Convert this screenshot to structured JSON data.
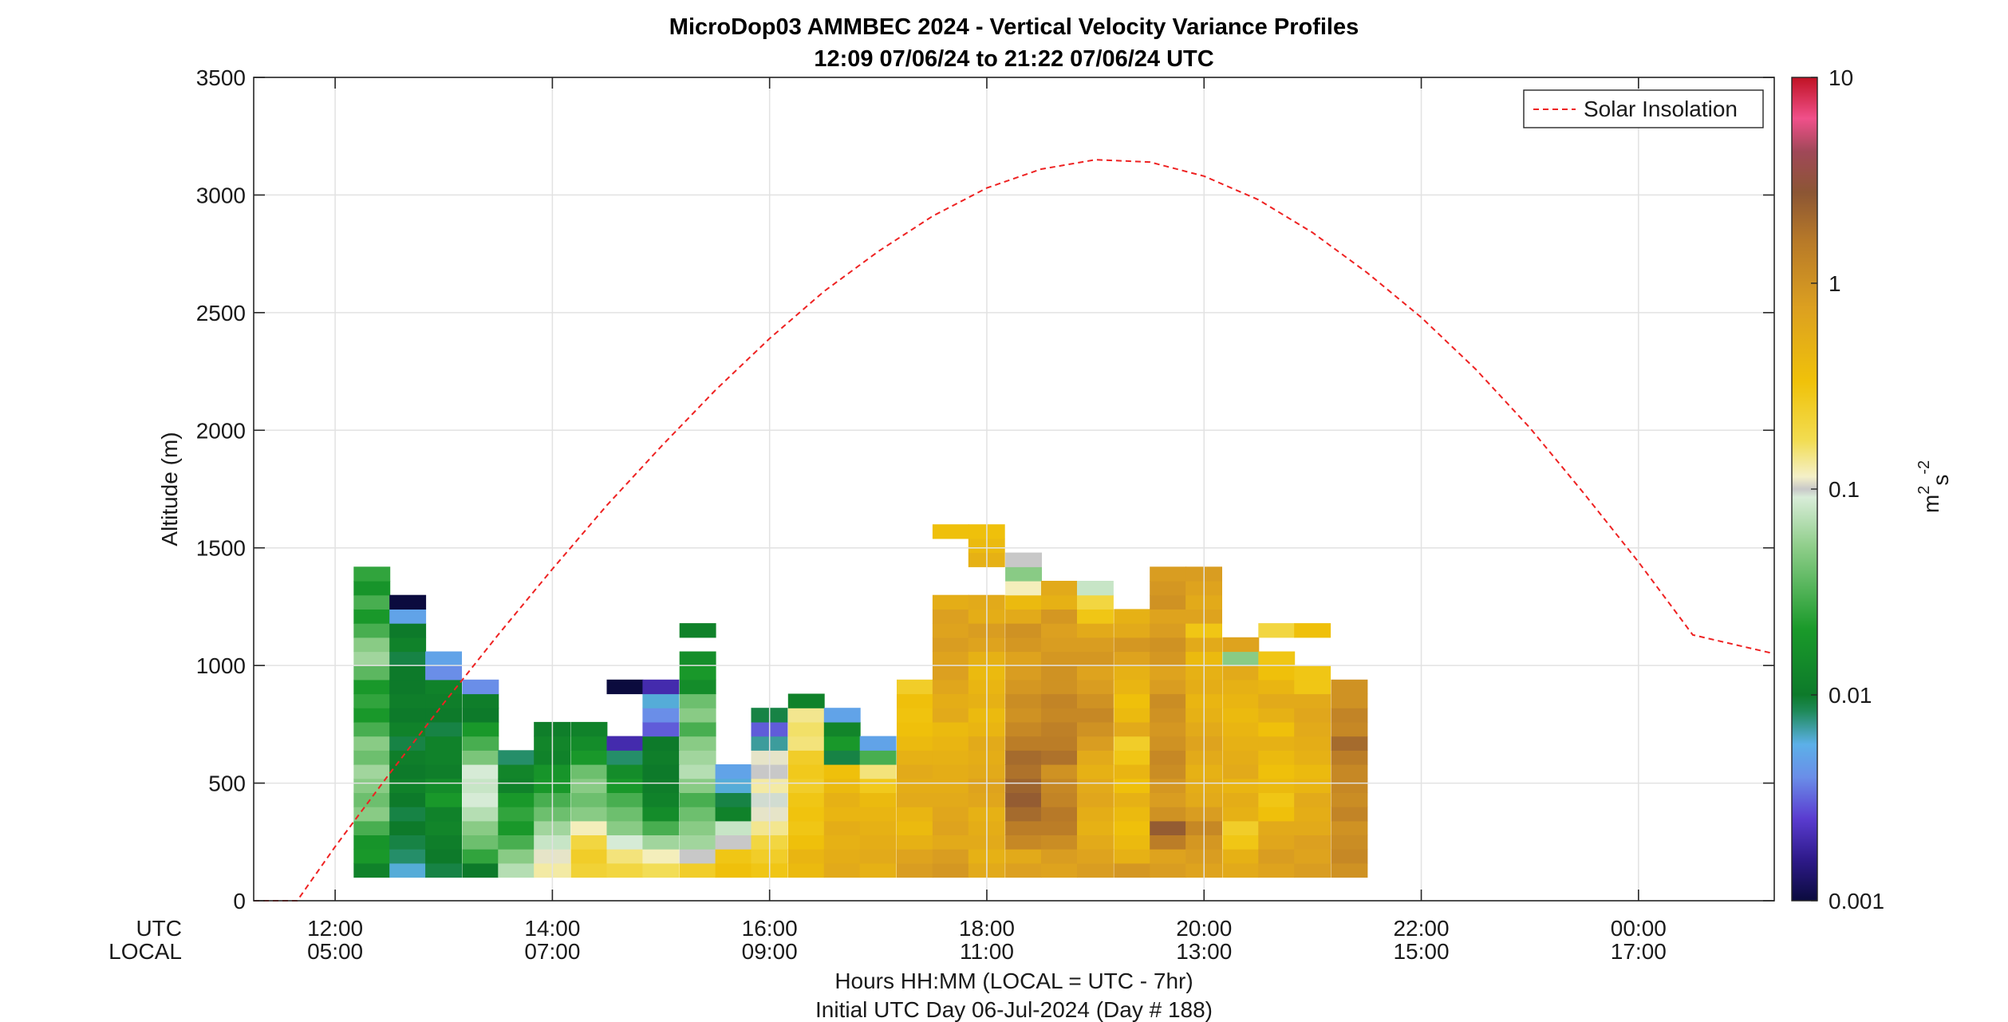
{
  "chart_data": {
    "type": "heatmap",
    "title": "MicroDop03 AMMBEC 2024 - Vertical Velocity Variance Profiles",
    "subtitle": "12:09 07/06/24 to 21:22 07/06/24  UTC",
    "ylabel": "Altitude (m)",
    "xlabel": "Hours HH:MM  (LOCAL = UTC - 7hr)",
    "xlabel2": "Initial UTC Day 06-Jul-2024 (Day # 188)",
    "ylim": [
      0,
      3500
    ],
    "xlim_hours_utc": [
      11.25,
      25.25
    ],
    "y_ticks": [
      "0",
      "500",
      "1000",
      "1500",
      "2000",
      "2500",
      "3000",
      "3500"
    ],
    "x_row_labels": [
      "UTC",
      "LOCAL"
    ],
    "x_ticks_utc": [
      "12:00",
      "14:00",
      "16:00",
      "18:00",
      "20:00",
      "22:00",
      "00:00"
    ],
    "x_ticks_local": [
      "05:00",
      "07:00",
      "09:00",
      "11:00",
      "13:00",
      "15:00",
      "17:00"
    ],
    "grid": true,
    "legend": {
      "placement": "top-right",
      "entries": [
        "Solar Insolation"
      ],
      "colors": [
        "#ee2222"
      ]
    },
    "colorbar": {
      "label_base": "m",
      "label_sup1": "2",
      "label_mid": "s",
      "label_sup2": "-2",
      "scale": "log",
      "range": [
        0.001,
        10
      ],
      "tick_labels": [
        "10",
        "1",
        "0.1",
        "0.01",
        "0.001"
      ],
      "stops": [
        [
          0.0,
          "#0b0b3e"
        ],
        [
          0.05,
          "#2e1a8a"
        ],
        [
          0.1,
          "#5a3cd0"
        ],
        [
          0.15,
          "#6a8ee8"
        ],
        [
          0.19,
          "#5cb0e8"
        ],
        [
          0.23,
          "#1f8a5a"
        ],
        [
          0.25,
          "#0d7a2a"
        ],
        [
          0.33,
          "#1a9a2a"
        ],
        [
          0.43,
          "#8fce8a"
        ],
        [
          0.49,
          "#d8ecd8"
        ],
        [
          0.5,
          "#c8c8c8"
        ],
        [
          0.515,
          "#f4f0c8"
        ],
        [
          0.56,
          "#f2dc50"
        ],
        [
          0.63,
          "#f0c20a"
        ],
        [
          0.72,
          "#dca020"
        ],
        [
          0.8,
          "#b87a28"
        ],
        [
          0.86,
          "#8c5634"
        ],
        [
          0.91,
          "#a04858"
        ],
        [
          0.95,
          "#f0508a"
        ],
        [
          1.0,
          "#c01224"
        ]
      ]
    },
    "solar_insolation": {
      "note": "altitude-scaled insolation curve",
      "peak_hour_utc": 19.1,
      "peak_value": 3150,
      "zero_until_hour": 11.65,
      "points": [
        [
          11.25,
          0
        ],
        [
          11.65,
          0
        ],
        [
          12,
          230
        ],
        [
          12.5,
          540
        ],
        [
          13,
          840
        ],
        [
          13.5,
          1130
        ],
        [
          14,
          1410
        ],
        [
          14.5,
          1680
        ],
        [
          15,
          1930
        ],
        [
          15.5,
          2170
        ],
        [
          16,
          2390
        ],
        [
          16.5,
          2590
        ],
        [
          17,
          2760
        ],
        [
          17.5,
          2910
        ],
        [
          18,
          3030
        ],
        [
          18.5,
          3110
        ],
        [
          19,
          3150
        ],
        [
          19.5,
          3140
        ],
        [
          20,
          3080
        ],
        [
          20.5,
          2980
        ],
        [
          21,
          2840
        ],
        [
          21.5,
          2670
        ],
        [
          22,
          2480
        ],
        [
          22.5,
          2260
        ],
        [
          23,
          2010
        ],
        [
          23.5,
          1730
        ],
        [
          24,
          1440
        ],
        [
          24.5,
          1130
        ],
        [
          25.25,
          1050
        ]
      ]
    },
    "heatmap": {
      "x_units": "hours UTC (column start)",
      "column_width_hours": 0.333,
      "bin_height_m": 60,
      "columns": [
        {
          "x": 12.17,
          "y0": 100,
          "v": [
            0.012,
            0.02,
            0.018,
            0.03,
            0.05,
            0.04,
            0.05,
            0.06,
            0.04,
            0.05,
            0.03,
            0.02,
            0.025,
            0.02,
            0.035,
            0.06,
            0.05,
            0.03,
            0.02,
            0.03,
            0.018,
            0.025
          ]
        },
        {
          "x": 12.5,
          "y0": 100,
          "v": [
            0.006,
            0.008,
            0.009,
            0.01,
            0.009,
            0.01,
            0.012,
            0.01,
            0.011,
            0.009,
            0.012,
            0.01,
            0.011,
            0.01,
            0.01,
            0.009,
            0.012,
            0.01,
            0.005,
            0.001
          ]
        },
        {
          "x": 12.83,
          "y0": 100,
          "v": [
            0.009,
            0.01,
            0.011,
            0.013,
            0.012,
            0.02,
            0.015,
            0.011,
            0.012,
            0.012,
            0.009,
            0.01,
            0.011,
            0.012,
            0.004,
            0.005
          ]
        },
        {
          "x": 13.17,
          "y0": 100,
          "v": [
            0.01,
            0.025,
            0.04,
            0.05,
            0.07,
            0.09,
            0.08,
            0.09,
            0.045,
            0.03,
            0.02,
            0.01,
            0.011,
            0.004
          ]
        },
        {
          "x": 13.5,
          "y0": 100,
          "v": [
            0.07,
            0.05,
            0.03,
            0.02,
            0.025,
            0.02,
            0.012,
            0.013,
            0.008
          ]
        },
        {
          "x": 13.83,
          "y0": 100,
          "v": [
            0.13,
            0.11,
            0.08,
            0.06,
            0.04,
            0.03,
            0.02,
            0.018,
            0.012,
            0.013,
            0.011
          ]
        },
        {
          "x": 14.17,
          "y0": 100,
          "v": [
            0.22,
            0.25,
            0.2,
            0.12,
            0.05,
            0.04,
            0.05,
            0.04,
            0.02,
            0.015,
            0.012
          ]
        },
        {
          "x": 14.5,
          "y0": 100,
          "v": [
            0.2,
            0.15,
            0.09,
            0.05,
            0.04,
            0.03,
            0.02,
            0.015,
            0.008,
            0.002,
            0,
            0,
            0,
            0.001
          ]
        },
        {
          "x": 14.83,
          "y0": 100,
          "v": [
            0.17,
            0.12,
            0.06,
            0.03,
            0.015,
            0.012,
            0.011,
            0.01,
            0.011,
            0.01,
            0.003,
            0.004,
            0.006,
            0.002
          ]
        },
        {
          "x": 15.17,
          "y0": 100,
          "v": [
            0.25,
            0.1,
            0.06,
            0.05,
            0.04,
            0.03,
            0.05,
            0.07,
            0.06,
            0.05,
            0.03,
            0.05,
            0.04,
            0.015,
            0.02,
            0.016,
            0.0,
            0.012
          ]
        },
        {
          "x": 15.5,
          "y0": 100,
          "v": [
            0.35,
            0.3,
            0.1,
            0.08,
            0.012,
            0.009,
            0.006,
            0.005
          ]
        },
        {
          "x": 15.83,
          "y0": 100,
          "v": [
            0.3,
            0.25,
            0.2,
            0.14,
            0.11,
            0.095,
            0.13,
            0.1,
            0.11,
            0.007,
            0.003,
            0.009
          ]
        },
        {
          "x": 16.17,
          "y0": 100,
          "v": [
            0.4,
            0.45,
            0.35,
            0.3,
            0.32,
            0.3,
            0.25,
            0.28,
            0.25,
            0.15,
            0.16,
            0.14,
            0.012
          ]
        },
        {
          "x": 16.5,
          "y0": 100,
          "v": [
            0.6,
            0.55,
            0.5,
            0.55,
            0.45,
            0.5,
            0.4,
            0.35,
            0.009,
            0.02,
            0.013,
            0.005
          ]
        },
        {
          "x": 16.83,
          "y0": 100,
          "v": [
            0.5,
            0.6,
            0.55,
            0.5,
            0.45,
            0.4,
            0.28,
            0.15,
            0.03,
            0.005
          ]
        },
        {
          "x": 17.17,
          "y0": 100,
          "v": [
            0.8,
            0.7,
            0.5,
            0.4,
            0.45,
            0.6,
            0.55,
            0.6,
            0.5,
            0.4,
            0.35,
            0.32,
            0.35,
            0.25
          ]
        },
        {
          "x": 17.5,
          "y0": 100,
          "v": [
            0.9,
            0.8,
            0.6,
            0.7,
            0.65,
            0.6,
            0.55,
            0.55,
            0.5,
            0.45,
            0.4,
            0.6,
            0.55,
            0.65,
            0.75,
            0.7,
            0.8,
            0.7,
            0.75,
            0.55,
            0,
            0,
            0,
            0,
            0.35
          ]
        },
        {
          "x": 17.83,
          "y0": 100,
          "v": [
            0.6,
            0.5,
            0.6,
            0.55,
            0.5,
            0.65,
            0.7,
            0.6,
            0.55,
            0.6,
            0.45,
            0.4,
            0.5,
            0.45,
            0.4,
            0.5,
            0.7,
            0.8,
            0.55,
            0.6,
            0,
            0,
            0.5,
            0.4,
            0.35
          ]
        },
        {
          "x": 18.17,
          "y0": 100,
          "v": [
            0.75,
            0.6,
            1.2,
            1.5,
            2.0,
            2.5,
            2.2,
            1.8,
            2.0,
            1.5,
            1.2,
            1.0,
            1.1,
            0.9,
            0.8,
            0.7,
            0.9,
            1.0,
            0.6,
            0.4,
            0.12,
            0.05,
            0.1
          ]
        },
        {
          "x": 18.5,
          "y0": 100,
          "v": [
            0.7,
            0.8,
            1.1,
            1.5,
            1.6,
            1.3,
            1.2,
            1.0,
            1.8,
            1.5,
            1.4,
            1.2,
            1.3,
            1.0,
            1.0,
            0.9,
            0.8,
            0.75,
            0.9,
            0.5,
            0.6
          ]
        },
        {
          "x": 18.83,
          "y0": 100,
          "v": [
            0.8,
            0.7,
            0.6,
            0.5,
            0.55,
            0.65,
            0.6,
            0.5,
            0.6,
            0.8,
            1.0,
            1.2,
            1.0,
            0.8,
            0.7,
            0.9,
            0.8,
            0.6,
            0.3,
            0.2,
            0.08
          ]
        },
        {
          "x": 19.17,
          "y0": 100,
          "v": [
            0.9,
            0.5,
            0.4,
            0.35,
            0.4,
            0.5,
            0.35,
            0.45,
            0.3,
            0.25,
            0.6,
            0.4,
            0.35,
            0.45,
            0.5,
            0.7,
            0.9,
            0.6,
            0.5
          ]
        },
        {
          "x": 19.5,
          "y0": 100,
          "v": [
            0.8,
            0.7,
            1.5,
            2.5,
            1.0,
            0.8,
            0.9,
            1.1,
            1.2,
            1.0,
            0.9,
            1.0,
            1.1,
            0.8,
            0.7,
            0.9,
            1.0,
            0.8,
            0.7,
            1.0,
            0.9,
            0.8
          ]
        },
        {
          "x": 19.83,
          "y0": 100,
          "v": [
            0.7,
            0.8,
            0.9,
            1.2,
            0.8,
            0.6,
            0.55,
            0.5,
            0.6,
            0.7,
            0.6,
            0.5,
            0.45,
            0.55,
            0.5,
            0.4,
            0.6,
            0.3,
            0.7,
            0.6,
            0.7,
            0.8
          ]
        },
        {
          "x": 20.17,
          "y0": 100,
          "v": [
            0.6,
            0.5,
            0.3,
            0.25,
            0.5,
            0.55,
            0.45,
            0.6,
            0.55,
            0.5,
            0.45,
            0.4,
            0.45,
            0.5,
            0.6,
            0.05,
            0.7
          ]
        },
        {
          "x": 20.5,
          "y0": 100,
          "v": [
            0.7,
            0.8,
            0.65,
            0.6,
            0.35,
            0.3,
            0.4,
            0.35,
            0.4,
            0.5,
            0.35,
            0.5,
            0.6,
            0.45,
            0.35,
            0.3,
            0,
            0.2
          ]
        },
        {
          "x": 20.83,
          "y0": 100,
          "v": [
            0.8,
            0.7,
            0.75,
            0.6,
            0.55,
            0.6,
            0.45,
            0.4,
            0.5,
            0.55,
            0.6,
            0.65,
            0.6,
            0.3,
            0.3,
            0,
            0,
            0.35
          ]
        },
        {
          "x": 21.17,
          "y0": 100,
          "v": [
            1.0,
            1.2,
            1.1,
            1.0,
            1.3,
            1.1,
            1.2,
            1.2,
            1.5,
            2.0,
            1.2,
            1.3,
            1.0,
            1.0
          ]
        }
      ]
    }
  }
}
